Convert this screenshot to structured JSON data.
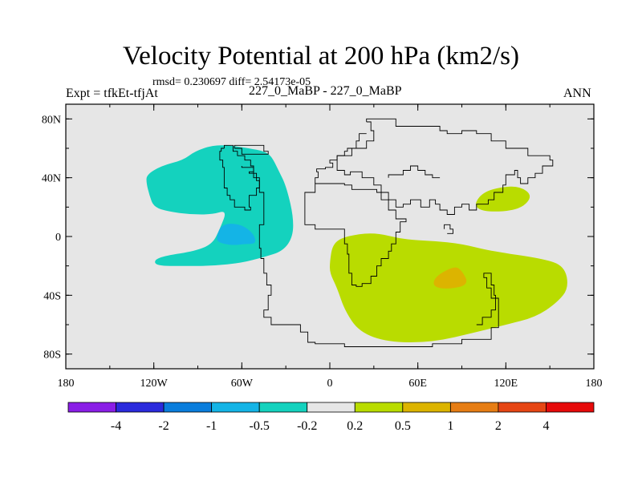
{
  "chart_data": {
    "type": "contour-map",
    "title": "Velocity Potential at 200 hPa (km2/s)",
    "stats_text": "rmsd= 0.230697 diff= 2.54173e-05",
    "left_label": "Expt = tfkEt-tfjAt",
    "center_label": "227_0_MaBP - 227_0_MaBP",
    "right_label": "ANN",
    "projection": "cylindrical-equidistant",
    "lon_range": [
      -180,
      180
    ],
    "lat_range": [
      -90,
      90
    ],
    "x_ticks": [
      {
        "value": -180,
        "label": "180"
      },
      {
        "value": -120,
        "label": "120W"
      },
      {
        "value": -60,
        "label": "60W"
      },
      {
        "value": 0,
        "label": "0"
      },
      {
        "value": 60,
        "label": "60E"
      },
      {
        "value": 120,
        "label": "120E"
      },
      {
        "value": 180,
        "label": "180"
      }
    ],
    "y_ticks": [
      {
        "value": 80,
        "label": "80N"
      },
      {
        "value": 40,
        "label": "40N"
      },
      {
        "value": 0,
        "label": "0"
      },
      {
        "value": -40,
        "label": "40S"
      },
      {
        "value": -80,
        "label": "80S"
      }
    ],
    "background_color": "#e6e6e6",
    "colorbar": {
      "colors": [
        "#8a1ee6",
        "#2a2adc",
        "#0a7ddc",
        "#14b4e6",
        "#14d2be",
        "#e6e6e6",
        "#b9dc00",
        "#dcb400",
        "#e67d14",
        "#e64614",
        "#e60a0a"
      ],
      "labels": [
        "-4",
        "-2",
        "-1",
        "-0.5",
        "-0.2",
        "0.2",
        "0.5",
        "1",
        "2",
        "4"
      ]
    },
    "regions": [
      {
        "name": "negative-large-area",
        "range": "-0.5 to -0.2",
        "color": "#14d2be",
        "points": [
          [
            -123,
            28
          ],
          [
            -125,
            36
          ],
          [
            -125,
            42
          ],
          [
            -115,
            48
          ],
          [
            -100,
            52
          ],
          [
            -92,
            58
          ],
          [
            -80,
            62
          ],
          [
            -68,
            62
          ],
          [
            -55,
            60
          ],
          [
            -45,
            58
          ],
          [
            -40,
            55
          ],
          [
            -35,
            45
          ],
          [
            -30,
            35
          ],
          [
            -25,
            15
          ],
          [
            -25,
            0
          ],
          [
            -32,
            -10
          ],
          [
            -45,
            -14
          ],
          [
            -60,
            -18
          ],
          [
            -80,
            -20
          ],
          [
            -100,
            -20
          ],
          [
            -118,
            -20
          ],
          [
            -120,
            -16
          ],
          [
            -112,
            -13
          ],
          [
            -92,
            -10
          ],
          [
            -80,
            -5
          ],
          [
            -75,
            5
          ],
          [
            -70,
            18
          ],
          [
            -80,
            15
          ],
          [
            -95,
            15
          ],
          [
            -110,
            17
          ],
          [
            -120,
            20
          ]
        ]
      },
      {
        "name": "negative-core",
        "range": "-1 to -0.5",
        "color": "#14b4e6",
        "points": [
          [
            -77,
            0
          ],
          [
            -75,
            6
          ],
          [
            -70,
            9
          ],
          [
            -60,
            8
          ],
          [
            -52,
            2
          ],
          [
            -50,
            -5
          ],
          [
            -58,
            -5
          ],
          [
            -65,
            -6
          ],
          [
            -73,
            -5
          ],
          [
            -77,
            -3
          ]
        ]
      },
      {
        "name": "positive-southern-area",
        "range": "0.2 to 0.5",
        "color": "#b9dc00",
        "points": [
          [
            0,
            -17
          ],
          [
            2,
            -5
          ],
          [
            10,
            0
          ],
          [
            30,
            3
          ],
          [
            50,
            -2
          ],
          [
            70,
            -3
          ],
          [
            90,
            -5
          ],
          [
            110,
            -10
          ],
          [
            145,
            -15
          ],
          [
            160,
            -20
          ],
          [
            163,
            -35
          ],
          [
            155,
            -45
          ],
          [
            140,
            -55
          ],
          [
            120,
            -60
          ],
          [
            100,
            -65
          ],
          [
            70,
            -72
          ],
          [
            40,
            -72
          ],
          [
            20,
            -65
          ],
          [
            10,
            -50
          ],
          [
            5,
            -35
          ],
          [
            0,
            -25
          ]
        ]
      },
      {
        "name": "positive-core",
        "range": "0.5 to 1",
        "color": "#dcb400",
        "points": [
          [
            72,
            -27
          ],
          [
            85,
            -20
          ],
          [
            90,
            -23
          ],
          [
            95,
            -33
          ],
          [
            80,
            -36
          ],
          [
            70,
            -34
          ]
        ]
      },
      {
        "name": "positive-asia-area",
        "range": "0.2 to 0.5",
        "color": "#b9dc00",
        "points": [
          [
            98,
            21
          ],
          [
            104,
            30
          ],
          [
            118,
            34
          ],
          [
            130,
            34
          ],
          [
            138,
            28
          ],
          [
            132,
            20
          ],
          [
            120,
            17
          ],
          [
            105,
            17
          ]
        ]
      }
    ],
    "coastlines": [
      [
        [
          -72,
          60
        ],
        [
          -66,
          62
        ],
        [
          -63,
          58
        ],
        [
          -58,
          55
        ],
        [
          -54,
          52
        ],
        [
          -52,
          48
        ],
        [
          -55,
          44
        ],
        [
          -50,
          43
        ],
        [
          -48,
          38
        ],
        [
          -50,
          33
        ],
        [
          -55,
          28
        ],
        [
          -54,
          20
        ],
        [
          -58,
          18
        ],
        [
          -65,
          20
        ],
        [
          -68,
          25
        ],
        [
          -70,
          28
        ],
        [
          -72,
          33
        ],
        [
          -72,
          40
        ],
        [
          -73,
          47
        ],
        [
          -75,
          52
        ],
        [
          -74,
          58
        ],
        [
          -72,
          60
        ]
      ],
      [
        [
          -60,
          48
        ],
        [
          -52,
          47
        ],
        [
          -48,
          40
        ],
        [
          -45,
          30
        ],
        [
          -45,
          15
        ],
        [
          -48,
          8
        ],
        [
          -48,
          0
        ],
        [
          -47,
          -8
        ],
        [
          -45,
          -15
        ],
        [
          -43,
          -25
        ],
        [
          -40,
          -33
        ],
        [
          -42,
          -40
        ],
        [
          -45,
          -50
        ],
        [
          -40,
          -55
        ],
        [
          -33,
          -60
        ],
        [
          -20,
          -60
        ],
        [
          -15,
          -65
        ],
        [
          -10,
          -72
        ],
        [
          10,
          -73
        ],
        [
          30,
          -75
        ],
        [
          50,
          -75
        ],
        [
          70,
          -75
        ],
        [
          90,
          -73
        ],
        [
          110,
          -70
        ],
        [
          115,
          -62
        ],
        [
          115,
          -52
        ],
        [
          110,
          -42
        ],
        [
          107,
          -35
        ],
        [
          105,
          -28
        ],
        [
          110,
          -25
        ],
        [
          112,
          -33
        ],
        [
          113,
          -40
        ],
        [
          110,
          -50
        ],
        [
          104,
          -55
        ],
        [
          100,
          -60
        ]
      ],
      [
        [
          25,
          78
        ],
        [
          45,
          80
        ],
        [
          60,
          75
        ],
        [
          75,
          75
        ],
        [
          80,
          72
        ],
        [
          90,
          70
        ],
        [
          100,
          72
        ],
        [
          110,
          70
        ],
        [
          120,
          65
        ],
        [
          135,
          60
        ],
        [
          150,
          55
        ],
        [
          152,
          52
        ],
        [
          145,
          48
        ],
        [
          140,
          43
        ],
        [
          135,
          40
        ],
        [
          130,
          36
        ],
        [
          128,
          40
        ],
        [
          126,
          45
        ],
        [
          120,
          42
        ],
        [
          118,
          35
        ],
        [
          112,
          30
        ],
        [
          108,
          25
        ],
        [
          100,
          22
        ],
        [
          95,
          18
        ],
        [
          90,
          22
        ],
        [
          85,
          20
        ],
        [
          80,
          15
        ],
        [
          75,
          18
        ],
        [
          72,
          22
        ],
        [
          68,
          25
        ],
        [
          62,
          20
        ],
        [
          55,
          25
        ],
        [
          50,
          22
        ],
        [
          45,
          20
        ],
        [
          40,
          25
        ],
        [
          35,
          30
        ],
        [
          30,
          35
        ],
        [
          22,
          40
        ],
        [
          14,
          44
        ],
        [
          10,
          42
        ],
        [
          5,
          45
        ],
        [
          5,
          50
        ],
        [
          15,
          55
        ],
        [
          25,
          60
        ],
        [
          30,
          65
        ],
        [
          28,
          72
        ],
        [
          25,
          78
        ]
      ],
      [
        [
          -10,
          36
        ],
        [
          -8,
          40
        ],
        [
          -9,
          44
        ],
        [
          -3,
          46
        ],
        [
          2,
          47
        ],
        [
          0,
          50
        ],
        [
          5,
          52
        ],
        [
          10,
          55
        ],
        [
          12,
          58
        ],
        [
          18,
          60
        ],
        [
          20,
          65
        ],
        [
          25,
          70
        ]
      ],
      [
        [
          -17,
          22
        ],
        [
          -17,
          15
        ],
        [
          -10,
          8
        ],
        [
          0,
          5
        ],
        [
          10,
          5
        ],
        [
          10,
          0
        ],
        [
          12,
          -5
        ],
        [
          13,
          -12
        ],
        [
          15,
          -25
        ],
        [
          18,
          -33
        ],
        [
          22,
          -34
        ],
        [
          28,
          -32
        ],
        [
          32,
          -27
        ],
        [
          35,
          -20
        ],
        [
          40,
          -15
        ],
        [
          42,
          -10
        ],
        [
          45,
          -5
        ],
        [
          48,
          3
        ],
        [
          52,
          10
        ],
        [
          45,
          12
        ],
        [
          40,
          18
        ],
        [
          35,
          25
        ],
        [
          32,
          30
        ],
        [
          25,
          32
        ],
        [
          15,
          32
        ],
        [
          10,
          35
        ],
        [
          0,
          36
        ],
        [
          -10,
          36
        ],
        [
          -17,
          30
        ],
        [
          -17,
          22
        ]
      ],
      [
        [
          40,
          40
        ],
        [
          50,
          42
        ],
        [
          55,
          45
        ],
        [
          60,
          48
        ],
        [
          65,
          45
        ],
        [
          70,
          42
        ],
        [
          75,
          40
        ]
      ],
      [
        [
          -65,
          60
        ],
        [
          -50,
          62
        ],
        [
          -45,
          62
        ],
        [
          -42,
          58
        ],
        [
          -50,
          56
        ],
        [
          -60,
          56
        ],
        [
          -65,
          60
        ]
      ],
      [
        [
          78,
          5
        ],
        [
          80,
          8
        ],
        [
          82,
          8
        ],
        [
          84,
          5
        ],
        [
          82,
          2
        ],
        [
          80,
          2
        ]
      ]
    ]
  }
}
